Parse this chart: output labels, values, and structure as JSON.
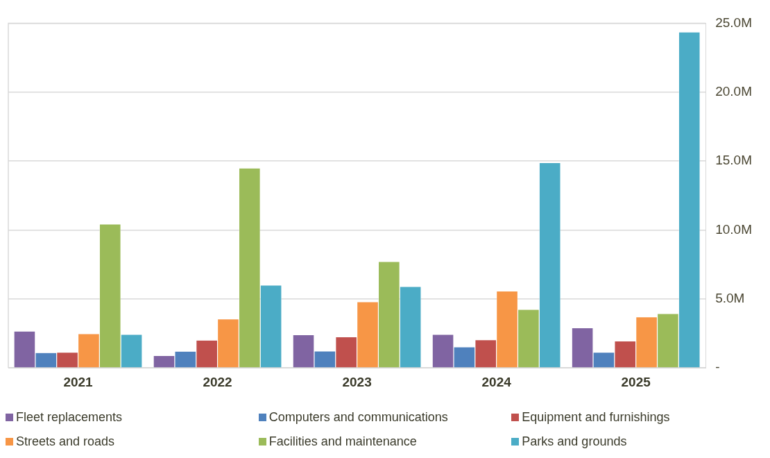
{
  "chart_data": {
    "type": "bar",
    "categories": [
      "2021",
      "2022",
      "2023",
      "2024",
      "2025"
    ],
    "series": [
      {
        "name": "Fleet replacements",
        "color": "#8064a2",
        "values": [
          2.67,
          0.9,
          2.41,
          2.43,
          2.91
        ]
      },
      {
        "name": "Computers and communications",
        "color": "#4f81bd",
        "values": [
          1.11,
          1.21,
          1.22,
          1.53,
          1.13
        ]
      },
      {
        "name": "Equipment and furnishings",
        "color": "#c0504d",
        "values": [
          1.13,
          2.01,
          2.25,
          2.04,
          1.95
        ]
      },
      {
        "name": "Streets and roads",
        "color": "#f79646",
        "values": [
          2.48,
          3.55,
          4.79,
          5.58,
          3.7
        ]
      },
      {
        "name": "Facilities and maintenance",
        "color": "#9bbb59",
        "values": [
          10.43,
          14.49,
          7.72,
          4.24,
          3.94
        ]
      },
      {
        "name": "Parks and grounds",
        "color": "#4bacc6",
        "values": [
          2.43,
          6.0,
          5.9,
          14.88,
          24.36
        ]
      }
    ],
    "ylim": [
      0,
      25
    ],
    "yticks": [
      {
        "value": 0,
        "label": "-"
      },
      {
        "value": 5,
        "label": "5.0M"
      },
      {
        "value": 10,
        "label": "10.0M"
      },
      {
        "value": 15,
        "label": "15.0M"
      },
      {
        "value": 20,
        "label": "20.0M"
      },
      {
        "value": 25,
        "label": "25.0M"
      }
    ],
    "grid": "y",
    "legend": "bottom"
  }
}
